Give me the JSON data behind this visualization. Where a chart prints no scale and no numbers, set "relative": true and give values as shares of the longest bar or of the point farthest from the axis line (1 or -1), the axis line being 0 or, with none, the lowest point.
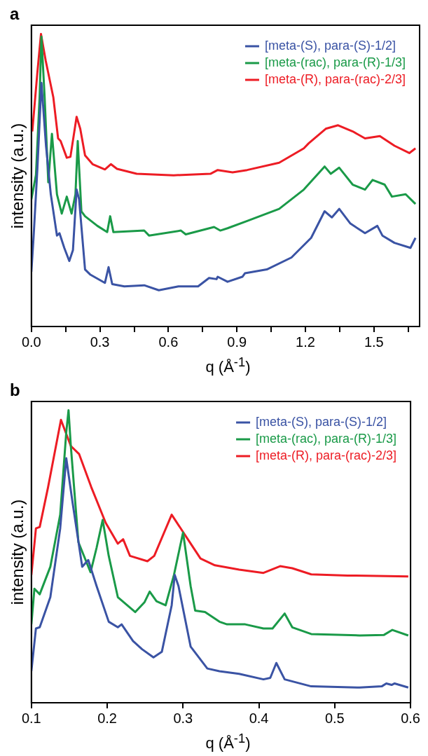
{
  "chart_data": [
    {
      "type": "line",
      "title": "a",
      "xlabel": "q (Å$^{-1}$)",
      "ylabel": "intensity (a.u.)",
      "relative": true,
      "tick_labels": "x",
      "marker": "none",
      "legend": "top right",
      "xlim": [
        0,
        1.7
      ],
      "xticks": [
        {
          "value": 0,
          "label": "0.0"
        },
        {
          "value": 0.15,
          "label": null
        },
        0.3,
        {
          "value": 0.45,
          "label": null
        },
        0.6,
        {
          "value": 0.75,
          "label": null
        },
        0.9,
        {
          "value": 1.05,
          "label": null
        },
        1.2,
        {
          "value": 1.35,
          "label": null
        },
        1.5,
        {
          "value": 1.65,
          "label": null
        }
      ],
      "series": [
        {
          "name": "[meta-(S), para-(S)-1/2]",
          "color": "#3a53a4",
          "x": [
            0,
            0.01,
            0.026,
            0.044,
            0.064,
            0.085,
            0.112,
            0.123,
            0.144,
            0.166,
            0.182,
            0.198,
            0.209,
            0.235,
            0.257,
            0.322,
            0.338,
            0.354,
            0.407,
            0.494,
            0.558,
            0.644,
            0.73,
            0.778,
            0.811,
            0.816,
            0.859,
            0.924,
            0.935,
            1.031,
            1.139,
            1.225,
            1.284,
            1.316,
            1.348,
            1.397,
            1.461,
            1.515,
            1.537,
            1.59,
            1.66,
            1.682
          ],
          "values": [
            0.187,
            0.311,
            0.535,
            0.833,
            0.618,
            0.452,
            0.311,
            0.319,
            0.269,
            0.224,
            0.261,
            0.468,
            0.435,
            0.195,
            0.178,
            0.149,
            0.203,
            0.145,
            0.137,
            0.141,
            0.124,
            0.137,
            0.137,
            0.166,
            0.162,
            0.17,
            0.153,
            0.17,
            0.182,
            0.195,
            0.236,
            0.303,
            0.394,
            0.373,
            0.402,
            0.352,
            0.319,
            0.344,
            0.311,
            0.286,
            0.269,
            0.303
          ]
        },
        {
          "name": "[meta-(rac), para-(R)-1/3]",
          "color": "#1a9a48",
          "x": [
            0,
            0.02,
            0.036,
            0.044,
            0.058,
            0.074,
            0.09,
            0.112,
            0.133,
            0.155,
            0.176,
            0.193,
            0.203,
            0.219,
            0.235,
            0.289,
            0.332,
            0.345,
            0.359,
            0.494,
            0.515,
            0.655,
            0.676,
            0.8,
            0.827,
            0.859,
            0.945,
            1.085,
            1.193,
            1.284,
            1.311,
            1.348,
            1.407,
            1.461,
            1.494,
            1.547,
            1.579,
            1.639,
            1.682
          ],
          "values": [
            0.435,
            0.518,
            0.784,
            0.991,
            0.784,
            0.493,
            0.659,
            0.452,
            0.386,
            0.444,
            0.386,
            0.452,
            0.634,
            0.394,
            0.377,
            0.344,
            0.323,
            0.377,
            0.323,
            0.328,
            0.311,
            0.328,
            0.315,
            0.34,
            0.328,
            0.336,
            0.361,
            0.402,
            0.468,
            0.547,
            0.522,
            0.543,
            0.485,
            0.468,
            0.501,
            0.485,
            0.444,
            0.452,
            0.419
          ]
        },
        {
          "name": "[meta-(R), para-(rac)-2/3]",
          "color": "#ed1c24",
          "x": [
            0.004,
            0.026,
            0.042,
            0.063,
            0.096,
            0.117,
            0.128,
            0.155,
            0.171,
            0.198,
            0.214,
            0.235,
            0.268,
            0.322,
            0.348,
            0.375,
            0.461,
            0.623,
            0.784,
            0.816,
            0.881,
            0.945,
            1.085,
            1.193,
            1.214,
            1.289,
            1.343,
            1.407,
            1.461,
            1.526,
            1.59,
            1.655,
            1.682
          ],
          "values": [
            0.667,
            0.866,
            1,
            0.908,
            0.784,
            0.643,
            0.634,
            0.577,
            0.58,
            0.717,
            0.676,
            0.585,
            0.555,
            0.537,
            0.555,
            0.539,
            0.522,
            0.517,
            0.522,
            0.535,
            0.527,
            0.535,
            0.56,
            0.609,
            0.626,
            0.676,
            0.688,
            0.667,
            0.643,
            0.651,
            0.618,
            0.593,
            0.609
          ]
        }
      ]
    },
    {
      "type": "line",
      "title": "b",
      "xlabel": "q (Å$^{-1}$)",
      "ylabel": "intensity (a.u.)",
      "relative": true,
      "tick_labels": "x",
      "marker": "none",
      "legend": "top right",
      "xlim": [
        0.1,
        0.6
      ],
      "xticks": [
        0.1,
        0.2,
        0.3,
        0.4,
        0.5,
        0.6
      ],
      "series": [
        {
          "name": "[meta-(S), para-(S)-1/2]",
          "color": "#3a53a4",
          "x": [
            0.1,
            0.106,
            0.111,
            0.125,
            0.138,
            0.146,
            0.154,
            0.167,
            0.175,
            0.186,
            0.202,
            0.214,
            0.219,
            0.234,
            0.246,
            0.261,
            0.272,
            0.285,
            0.289,
            0.294,
            0.31,
            0.332,
            0.348,
            0.374,
            0.406,
            0.415,
            0.423,
            0.434,
            0.469,
            0.533,
            0.562,
            0.568,
            0.575,
            0.579,
            0.597
          ],
          "values": [
            0.108,
            0.254,
            0.258,
            0.361,
            0.596,
            0.836,
            0.69,
            0.465,
            0.488,
            0.399,
            0.277,
            0.258,
            0.268,
            0.211,
            0.183,
            0.155,
            0.174,
            0.333,
            0.437,
            0.399,
            0.192,
            0.117,
            0.108,
            0.099,
            0.08,
            0.085,
            0.136,
            0.08,
            0.056,
            0.052,
            0.056,
            0.066,
            0.061,
            0.066,
            0.052
          ]
        },
        {
          "name": "[meta-(rac), para-(R)-1/3]",
          "color": "#1a9a48",
          "x": [
            0.1,
            0.104,
            0.111,
            0.125,
            0.138,
            0.146,
            0.149,
            0.152,
            0.162,
            0.178,
            0.186,
            0.194,
            0.202,
            0.214,
            0.237,
            0.249,
            0.256,
            0.265,
            0.277,
            0.288,
            0.3,
            0.31,
            0.316,
            0.329,
            0.348,
            0.358,
            0.382,
            0.406,
            0.418,
            0.434,
            0.444,
            0.469,
            0.533,
            0.565,
            0.576,
            0.597
          ],
          "values": [
            0.268,
            0.39,
            0.371,
            0.465,
            0.643,
            0.925,
            1,
            0.878,
            0.549,
            0.446,
            0.53,
            0.625,
            0.502,
            0.361,
            0.31,
            0.343,
            0.38,
            0.347,
            0.333,
            0.437,
            0.582,
            0.399,
            0.315,
            0.31,
            0.277,
            0.268,
            0.268,
            0.254,
            0.254,
            0.305,
            0.258,
            0.235,
            0.23,
            0.232,
            0.249,
            0.23
          ]
        },
        {
          "name": "[meta-(R), para-(rac)-2/3]",
          "color": "#ed1c24",
          "x": [
            0.1,
            0.106,
            0.111,
            0.122,
            0.139,
            0.152,
            0.163,
            0.179,
            0.198,
            0.214,
            0.221,
            0.23,
            0.253,
            0.262,
            0.285,
            0.304,
            0.323,
            0.342,
            0.374,
            0.406,
            0.428,
            0.444,
            0.469,
            0.517,
            0.597
          ],
          "values": [
            0.437,
            0.596,
            0.601,
            0.737,
            0.967,
            0.878,
            0.85,
            0.737,
            0.615,
            0.544,
            0.559,
            0.502,
            0.484,
            0.502,
            0.643,
            0.568,
            0.493,
            0.47,
            0.455,
            0.444,
            0.467,
            0.46,
            0.439,
            0.435,
            0.432
          ]
        }
      ]
    }
  ]
}
